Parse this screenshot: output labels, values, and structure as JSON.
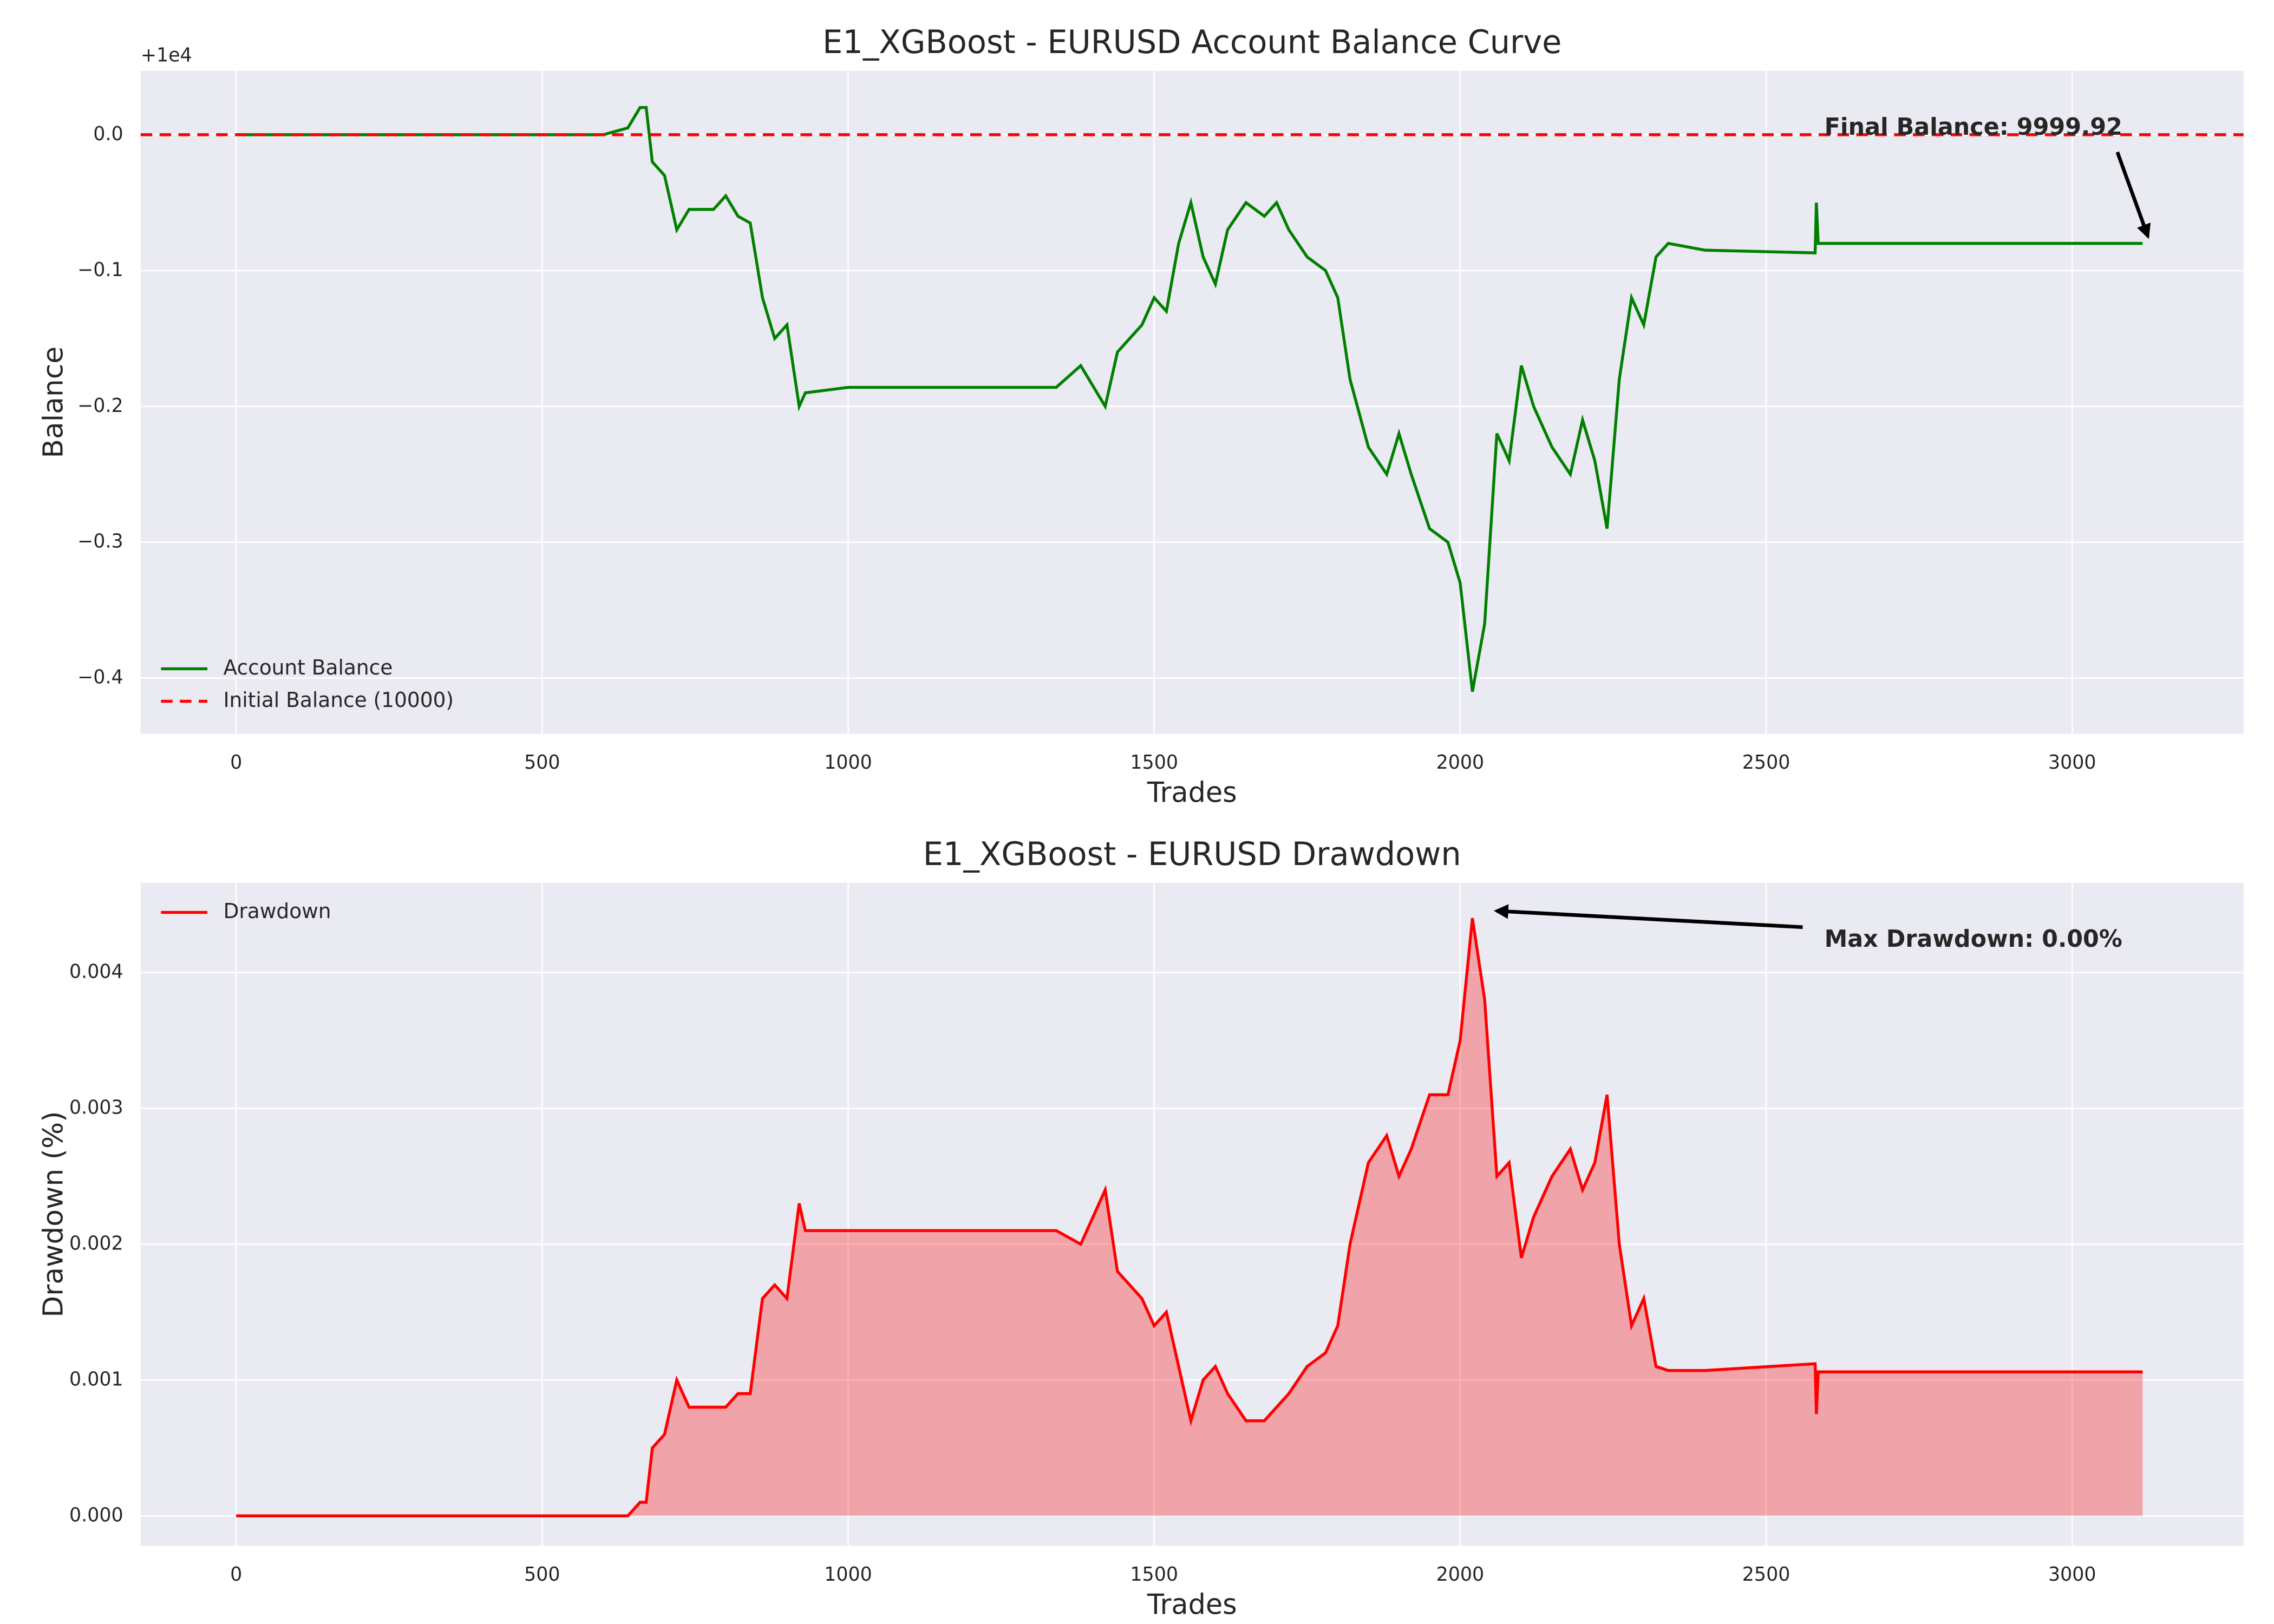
{
  "chart_data": [
    {
      "type": "line",
      "title": "E1_XGBoost - EURUSD Account Balance Curve",
      "xlabel": "Trades",
      "ylabel": "Balance",
      "offset_label": "+1e4",
      "x": [
        0,
        600,
        640,
        660,
        670,
        680,
        700,
        720,
        740,
        780,
        800,
        820,
        840,
        860,
        880,
        900,
        920,
        930,
        1000,
        1340,
        1380,
        1420,
        1440,
        1480,
        1500,
        1520,
        1540,
        1560,
        1580,
        1600,
        1620,
        1650,
        1680,
        1700,
        1720,
        1750,
        1780,
        1800,
        1820,
        1850,
        1880,
        1900,
        1920,
        1950,
        1980,
        2000,
        2020,
        2040,
        2060,
        2080,
        2100,
        2120,
        2150,
        2180,
        2200,
        2220,
        2240,
        2260,
        2280,
        2300,
        2320,
        2340,
        2400,
        2580,
        2582,
        2585,
        3115
      ],
      "series": [
        {
          "name": "Account Balance",
          "color": "#008000",
          "values": [
            0,
            0,
            0.005,
            0.02,
            0.02,
            -0.02,
            -0.03,
            -0.07,
            -0.055,
            -0.055,
            -0.045,
            -0.06,
            -0.065,
            -0.12,
            -0.15,
            -0.14,
            -0.2,
            -0.19,
            -0.186,
            -0.186,
            -0.17,
            -0.2,
            -0.16,
            -0.14,
            -0.12,
            -0.13,
            -0.08,
            -0.05,
            -0.09,
            -0.11,
            -0.07,
            -0.05,
            -0.06,
            -0.05,
            -0.07,
            -0.09,
            -0.1,
            -0.12,
            -0.18,
            -0.23,
            -0.25,
            -0.22,
            -0.25,
            -0.29,
            -0.3,
            -0.33,
            -0.41,
            -0.36,
            -0.22,
            -0.24,
            -0.17,
            -0.2,
            -0.23,
            -0.25,
            -0.21,
            -0.24,
            -0.29,
            -0.18,
            -0.12,
            -0.14,
            -0.09,
            -0.08,
            -0.085,
            -0.087,
            -0.05,
            -0.08,
            -0.08
          ]
        }
      ],
      "hline": {
        "name": "Initial Balance (10000)",
        "value": 0,
        "color": "#ff0000",
        "style": "dashed"
      },
      "annotation": "Final Balance: 9999.92",
      "xlim": [
        -156,
        3280
      ],
      "ylim": [
        -0.441,
        0.047
      ],
      "xticks": [
        0,
        500,
        1000,
        1500,
        2000,
        2500,
        3000
      ],
      "yticks": [
        {
          "value": -0.4,
          "label": "−0.4"
        },
        {
          "value": -0.3,
          "label": "−0.3"
        },
        {
          "value": -0.2,
          "label": "−0.2"
        },
        {
          "value": -0.1,
          "label": "−0.1"
        },
        {
          "value": 0,
          "label": "0.0"
        }
      ],
      "grid": true,
      "legend": "lower left"
    },
    {
      "type": "area",
      "title": "E1_XGBoost - EURUSD Drawdown",
      "xlabel": "Trades",
      "ylabel": "Drawdown (%)",
      "x": [
        0,
        600,
        640,
        660,
        670,
        680,
        700,
        720,
        740,
        780,
        800,
        820,
        840,
        860,
        880,
        900,
        920,
        930,
        1000,
        1340,
        1380,
        1420,
        1440,
        1480,
        1500,
        1520,
        1540,
        1560,
        1580,
        1600,
        1620,
        1650,
        1680,
        1700,
        1720,
        1750,
        1780,
        1800,
        1820,
        1850,
        1880,
        1900,
        1920,
        1950,
        1980,
        2000,
        2020,
        2040,
        2060,
        2080,
        2100,
        2120,
        2150,
        2180,
        2200,
        2220,
        2240,
        2260,
        2280,
        2300,
        2320,
        2340,
        2400,
        2580,
        2582,
        2585,
        3115
      ],
      "series": [
        {
          "name": "Drawdown",
          "color": "#ff0000",
          "fill_alpha": 0.3,
          "values": [
            0,
            0,
            0,
            0.0001,
            0.0001,
            0.0005,
            0.0006,
            0.001,
            0.0008,
            0.0008,
            0.0008,
            0.0009,
            0.0009,
            0.0016,
            0.0017,
            0.0016,
            0.0023,
            0.0021,
            0.0021,
            0.0021,
            0.002,
            0.0024,
            0.0018,
            0.0016,
            0.0014,
            0.0015,
            0.0011,
            0.0007,
            0.001,
            0.0011,
            0.0009,
            0.0007,
            0.0007,
            0.0008,
            0.0009,
            0.0011,
            0.0012,
            0.0014,
            0.002,
            0.0026,
            0.0028,
            0.0025,
            0.0027,
            0.0031,
            0.0031,
            0.0035,
            0.0044,
            0.0038,
            0.0025,
            0.0026,
            0.0019,
            0.0022,
            0.0025,
            0.0027,
            0.0024,
            0.0026,
            0.0031,
            0.002,
            0.0014,
            0.0016,
            0.0011,
            0.00107,
            0.00107,
            0.00112,
            0.00075,
            0.00106,
            0.00106
          ]
        }
      ],
      "annotation": "Max Drawdown: 0.00%",
      "xlim": [
        -156,
        3280
      ],
      "ylim": [
        -0.00022,
        0.00466
      ],
      "xticks": [
        0,
        500,
        1000,
        1500,
        2000,
        2500,
        3000
      ],
      "yticks": [
        {
          "value": 0,
          "label": "0.000"
        },
        {
          "value": 0.001,
          "label": "0.001"
        },
        {
          "value": 0.002,
          "label": "0.002"
        },
        {
          "value": 0.003,
          "label": "0.003"
        },
        {
          "value": 0.004,
          "label": "0.004"
        }
      ],
      "grid": true,
      "legend": "upper left"
    }
  ]
}
